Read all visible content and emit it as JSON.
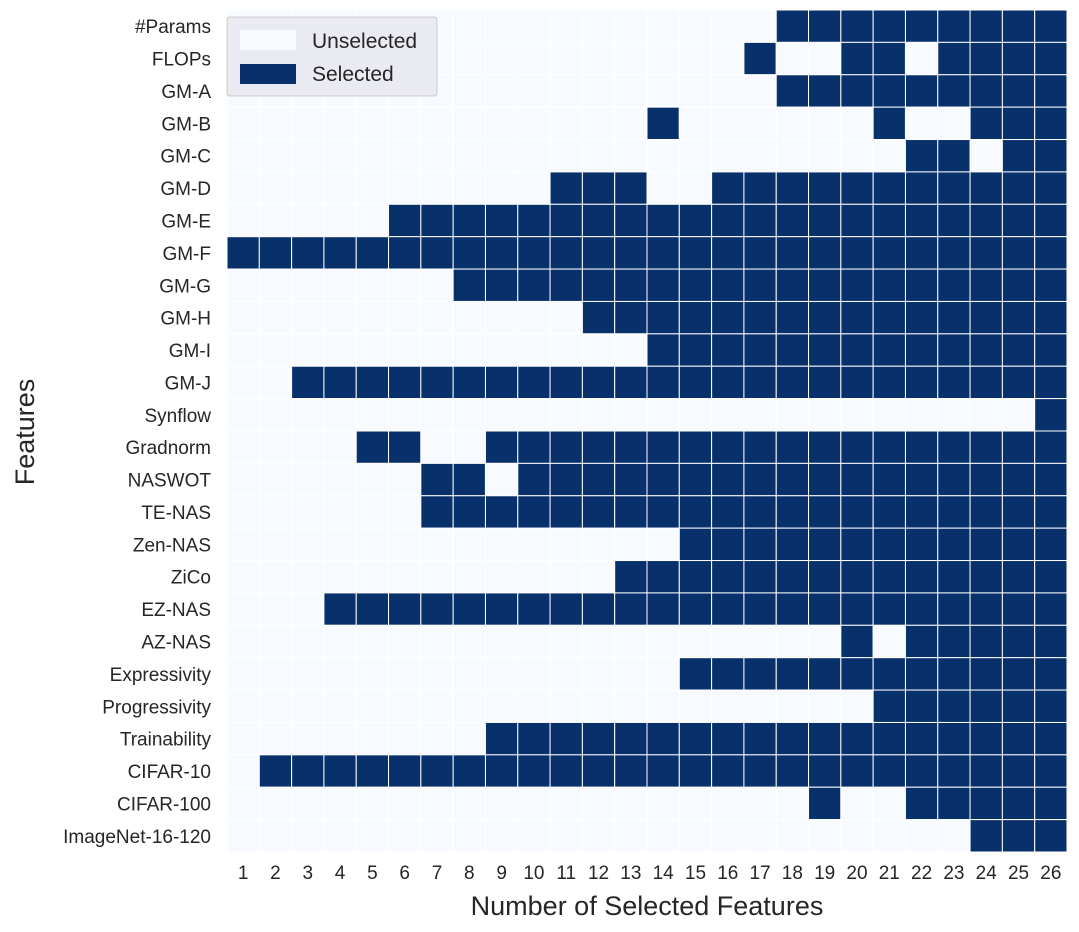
{
  "chart_data": {
    "type": "heatmap",
    "title": "",
    "xlabel": "Number of Selected Features",
    "ylabel": "Features",
    "x": [
      "1",
      "2",
      "3",
      "4",
      "5",
      "6",
      "7",
      "8",
      "9",
      "10",
      "11",
      "12",
      "13",
      "14",
      "15",
      "16",
      "17",
      "18",
      "19",
      "20",
      "21",
      "22",
      "23",
      "24",
      "25",
      "26"
    ],
    "y": [
      "#Params",
      "FLOPs",
      "GM-A",
      "GM-B",
      "GM-C",
      "GM-D",
      "GM-E",
      "GM-F",
      "GM-G",
      "GM-H",
      "GM-I",
      "GM-J",
      "Synflow",
      "Gradnorm",
      "NASWOT",
      "TE-NAS",
      "Zen-NAS",
      "ZiCo",
      "EZ-NAS",
      "AZ-NAS",
      "Expressivity",
      "Progressivity",
      "Trainability",
      "CIFAR-10",
      "CIFAR-100",
      "ImageNet-16-120"
    ],
    "value_legend": {
      "0": "Unselected",
      "1": "Selected"
    },
    "colors": {
      "unselected": "#f7fbff",
      "selected": "#08306b",
      "grid": "#ffffff",
      "legend_bg": "#eaeaf2"
    },
    "legend": {
      "position": "top-left",
      "entries": [
        "Unselected",
        "Selected"
      ]
    },
    "rows": [
      "00000000000000000111111111",
      "00000000000000001001101111",
      "00000000000000000111111111",
      "00000000000001000000100111",
      "00000000000000000000011011",
      "00000000001110011111111111",
      "00000111111111111111111111",
      "11111111111111111111111111",
      "00000001111111111111111111",
      "00000000000111111111111111",
      "00000000000001111111111111",
      "00111111111111111111111111",
      "00000000000000000000000001",
      "00001100111111111111111111",
      "00000011011111111111111111",
      "00000011111111111111111111",
      "00000000000000111111111111",
      "00000000000011111111111111",
      "00011111111111111111111111",
      "00000000000000000001011111",
      "00000000000000111111111111",
      "00000000000000000000111111",
      "00000000111111111111111111",
      "01111111111111111111111111",
      "00000000000000000010011111",
      "00000000000000000000000111"
    ]
  }
}
